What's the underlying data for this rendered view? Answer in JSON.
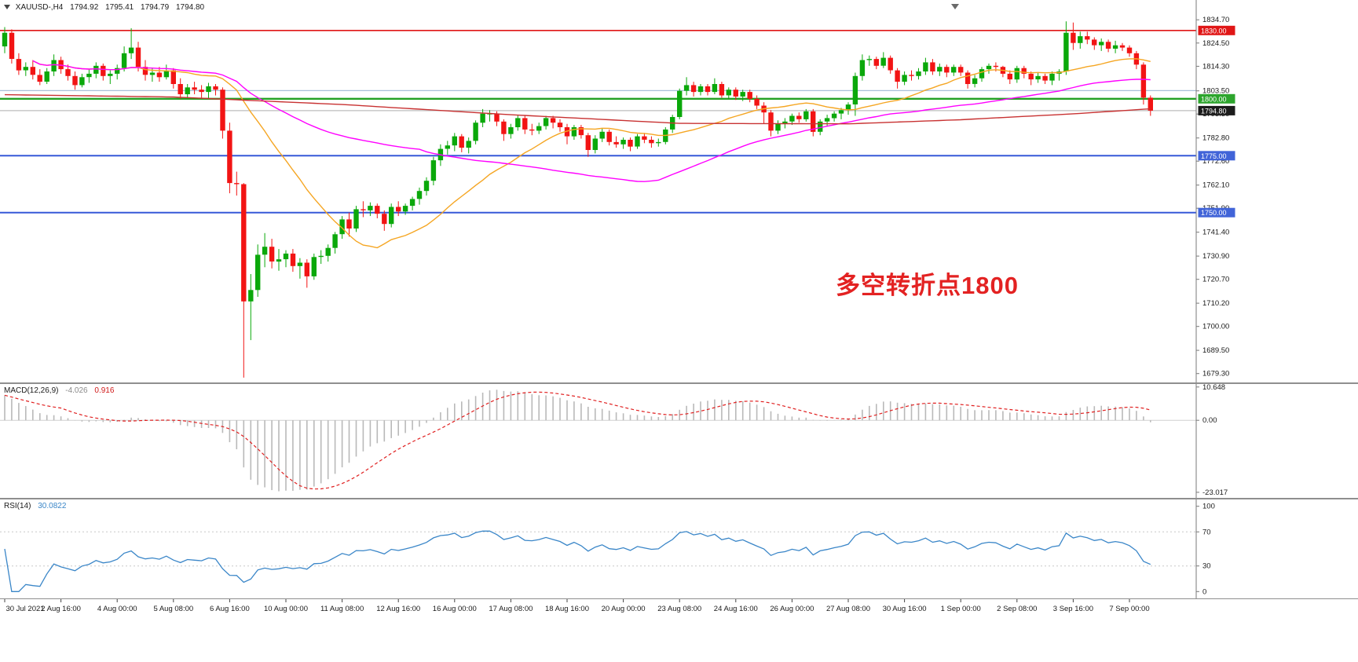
{
  "window": {
    "title_symbol": "XAUUSD-,H4",
    "ohlc": {
      "open": "1794.92",
      "high": "1795.41",
      "low": "1794.79",
      "close": "1794.80"
    }
  },
  "annotation": {
    "text": "多空转折点1800",
    "color": "#e32222"
  },
  "price_axis": {
    "range": {
      "max": 1843.4,
      "min": 1675.4
    },
    "ticks": [
      "1834.70",
      "1824.50",
      "1814.30",
      "1803.50",
      "1793.30",
      "1782.80",
      "1772.60",
      "1762.10",
      "1751.90",
      "1741.40",
      "1730.90",
      "1720.70",
      "1710.20",
      "1700.00",
      "1689.50",
      "1679.30"
    ],
    "badges": [
      {
        "text": "1830.00",
        "price": 1830.0,
        "bg": "#e01616"
      },
      {
        "text": "1800.00",
        "price": 1800.0,
        "bg": "#2da52d"
      },
      {
        "text": "1794.80",
        "price": 1794.8,
        "bg": "#1c1c1c"
      },
      {
        "text": "1775.00",
        "price": 1775.0,
        "bg": "#4164d8"
      },
      {
        "text": "1750.00",
        "price": 1750.0,
        "bg": "#4164d8"
      }
    ]
  },
  "chart_data": {
    "type": "candlestick",
    "symbol": "XAUUSD",
    "timeframe": "H4",
    "label_step": 8,
    "x_labels": [
      "30 Jul 2021",
      "2 Aug 16:00",
      "4 Aug 00:00",
      "5 Aug 08:00",
      "6 Aug 16:00",
      "10 Aug 00:00",
      "11 Aug 08:00",
      "12 Aug 16:00",
      "16 Aug 00:00",
      "17 Aug 08:00",
      "18 Aug 16:00",
      "20 Aug 00:00",
      "23 Aug 08:00",
      "24 Aug 16:00",
      "26 Aug 00:00",
      "27 Aug 08:00",
      "30 Aug 16:00",
      "1 Sep 00:00",
      "2 Sep 08:00",
      "3 Sep 16:00",
      "7 Sep 00:00"
    ],
    "candle_colors": {
      "up": "#0aa80a",
      "down": "#f21414"
    },
    "hlines": [
      {
        "price": 1830.0,
        "color": "#e01616",
        "width": 1.6
      },
      {
        "price": 1803.6,
        "color": "#a9c0d8",
        "width": 1.2
      },
      {
        "price": 1800.0,
        "color": "#22a022",
        "width": 2.4
      },
      {
        "price": 1794.8,
        "color": "#bdbdbd",
        "width": 1.2
      },
      {
        "price": 1775.0,
        "color": "#3658d8",
        "width": 2
      },
      {
        "price": 1750.0,
        "color": "#3658d8",
        "width": 2
      }
    ],
    "moving_averages": [
      {
        "name": "ma-fast",
        "period": 20,
        "color": "#f5a623"
      },
      {
        "name": "ma-mid",
        "period": 60,
        "color": "#ff00ff"
      },
      {
        "name": "ma-slow",
        "color": "#c83232",
        "points": [
          [
            0,
            1801.8
          ],
          [
            24,
            1800.8
          ],
          [
            48,
            1797.5
          ],
          [
            72,
            1793.0
          ],
          [
            96,
            1789.2
          ],
          [
            120,
            1789.0
          ],
          [
            136,
            1790.8
          ],
          [
            152,
            1793.4
          ],
          [
            163,
            1795.6
          ]
        ]
      }
    ],
    "ohlc": [
      [
        1823.0,
        1831.5,
        1820.0,
        1829.0
      ],
      [
        1829.0,
        1830.5,
        1815.5,
        1817.5
      ],
      [
        1817.5,
        1820.0,
        1810.5,
        1812.5
      ],
      [
        1812.5,
        1816.0,
        1810.0,
        1814.0
      ],
      [
        1814.0,
        1817.0,
        1808.5,
        1810.5
      ],
      [
        1810.5,
        1813.0,
        1806.0,
        1807.5
      ],
      [
        1807.5,
        1813.5,
        1806.5,
        1812.0
      ],
      [
        1812.0,
        1819.5,
        1810.0,
        1817.0
      ],
      [
        1817.0,
        1818.5,
        1811.0,
        1813.0
      ],
      [
        1813.0,
        1815.0,
        1808.0,
        1810.0
      ],
      [
        1810.0,
        1812.0,
        1804.0,
        1806.0
      ],
      [
        1806.0,
        1811.0,
        1805.0,
        1809.5
      ],
      [
        1809.5,
        1813.0,
        1807.0,
        1811.0
      ],
      [
        1811.0,
        1816.0,
        1809.0,
        1814.5
      ],
      [
        1814.5,
        1815.5,
        1808.0,
        1810.0
      ],
      [
        1810.0,
        1812.5,
        1806.5,
        1811.0
      ],
      [
        1811.0,
        1815.0,
        1808.5,
        1813.5
      ],
      [
        1813.5,
        1823.0,
        1812.0,
        1820.0
      ],
      [
        1820.0,
        1831.0,
        1817.5,
        1822.5
      ],
      [
        1822.5,
        1825.0,
        1812.0,
        1814.0
      ],
      [
        1814.0,
        1817.0,
        1808.0,
        1810.5
      ],
      [
        1810.5,
        1813.5,
        1807.5,
        1811.5
      ],
      [
        1811.5,
        1814.0,
        1807.5,
        1809.5
      ],
      [
        1809.5,
        1815.0,
        1808.5,
        1812.5
      ],
      [
        1812.5,
        1813.5,
        1804.5,
        1806.5
      ],
      [
        1806.5,
        1809.0,
        1800.0,
        1802.0
      ],
      [
        1802.0,
        1806.5,
        1800.5,
        1805.0
      ],
      [
        1805.0,
        1807.5,
        1802.0,
        1804.0
      ],
      [
        1804.0,
        1806.0,
        1800.5,
        1803.0
      ],
      [
        1803.0,
        1807.0,
        1800.0,
        1805.5
      ],
      [
        1805.5,
        1806.5,
        1801.5,
        1804.0
      ],
      [
        1804.0,
        1805.0,
        1782.5,
        1786.0
      ],
      [
        1786.0,
        1789.5,
        1758.5,
        1763.0
      ],
      [
        1763.0,
        1768.0,
        1757.5,
        1762.5
      ],
      [
        1762.5,
        1763.0,
        1677.5,
        1711.0
      ],
      [
        1711.0,
        1723.0,
        1694.0,
        1716.0
      ],
      [
        1716.0,
        1736.0,
        1713.0,
        1731.5
      ],
      [
        1731.5,
        1741.0,
        1726.0,
        1735.0
      ],
      [
        1735.0,
        1738.5,
        1725.5,
        1728.5
      ],
      [
        1728.5,
        1734.0,
        1724.5,
        1729.5
      ],
      [
        1729.5,
        1733.5,
        1726.0,
        1732.0
      ],
      [
        1732.0,
        1734.0,
        1724.0,
        1726.5
      ],
      [
        1726.5,
        1730.0,
        1721.0,
        1728.0
      ],
      [
        1728.0,
        1729.5,
        1717.0,
        1722.0
      ],
      [
        1722.0,
        1732.0,
        1720.5,
        1730.5
      ],
      [
        1730.5,
        1733.5,
        1727.5,
        1731.0
      ],
      [
        1731.0,
        1736.0,
        1728.5,
        1734.5
      ],
      [
        1734.5,
        1741.5,
        1732.0,
        1740.5
      ],
      [
        1740.5,
        1748.5,
        1738.5,
        1747.0
      ],
      [
        1747.0,
        1750.0,
        1739.5,
        1743.0
      ],
      [
        1743.0,
        1753.0,
        1741.5,
        1751.5
      ],
      [
        1751.5,
        1755.0,
        1748.0,
        1751.0
      ],
      [
        1751.0,
        1754.5,
        1748.5,
        1753.0
      ],
      [
        1753.0,
        1754.0,
        1747.5,
        1749.5
      ],
      [
        1749.5,
        1751.0,
        1742.0,
        1745.0
      ],
      [
        1745.0,
        1754.0,
        1743.5,
        1752.5
      ],
      [
        1752.5,
        1755.0,
        1748.5,
        1750.5
      ],
      [
        1750.5,
        1754.0,
        1749.0,
        1753.0
      ],
      [
        1753.0,
        1757.0,
        1751.0,
        1756.0
      ],
      [
        1756.0,
        1761.0,
        1753.5,
        1759.5
      ],
      [
        1759.5,
        1765.5,
        1757.5,
        1764.0
      ],
      [
        1764.0,
        1774.5,
        1762.0,
        1773.0
      ],
      [
        1773.0,
        1780.0,
        1770.5,
        1778.0
      ],
      [
        1778.0,
        1781.5,
        1775.5,
        1779.5
      ],
      [
        1779.5,
        1785.0,
        1777.0,
        1783.5
      ],
      [
        1783.5,
        1784.5,
        1776.5,
        1778.5
      ],
      [
        1778.5,
        1783.0,
        1776.0,
        1781.5
      ],
      [
        1781.5,
        1790.5,
        1780.0,
        1789.5
      ],
      [
        1789.5,
        1795.5,
        1787.5,
        1793.5
      ],
      [
        1793.5,
        1795.0,
        1790.0,
        1793.5
      ],
      [
        1793.5,
        1794.5,
        1788.0,
        1790.0
      ],
      [
        1790.0,
        1791.0,
        1781.5,
        1784.5
      ],
      [
        1784.5,
        1789.0,
        1782.5,
        1787.5
      ],
      [
        1787.5,
        1793.0,
        1786.0,
        1791.5
      ],
      [
        1791.5,
        1792.5,
        1784.5,
        1786.5
      ],
      [
        1786.5,
        1789.0,
        1784.0,
        1786.0
      ],
      [
        1786.0,
        1789.5,
        1784.5,
        1788.0
      ],
      [
        1788.0,
        1792.5,
        1786.5,
        1791.5
      ],
      [
        1791.5,
        1792.5,
        1787.0,
        1789.5
      ],
      [
        1789.5,
        1791.0,
        1785.5,
        1787.5
      ],
      [
        1787.5,
        1789.0,
        1780.0,
        1783.5
      ],
      [
        1783.5,
        1788.5,
        1782.0,
        1787.5
      ],
      [
        1787.5,
        1788.5,
        1782.5,
        1784.0
      ],
      [
        1784.0,
        1785.0,
        1774.5,
        1777.5
      ],
      [
        1777.5,
        1784.0,
        1776.0,
        1782.5
      ],
      [
        1782.5,
        1787.0,
        1781.0,
        1785.5
      ],
      [
        1785.5,
        1786.5,
        1779.5,
        1781.0
      ],
      [
        1781.0,
        1783.5,
        1778.5,
        1780.0
      ],
      [
        1780.0,
        1783.0,
        1778.0,
        1782.0
      ],
      [
        1782.0,
        1783.0,
        1777.0,
        1779.0
      ],
      [
        1779.0,
        1784.5,
        1778.0,
        1783.5
      ],
      [
        1783.5,
        1785.0,
        1780.5,
        1782.0
      ],
      [
        1782.0,
        1783.5,
        1778.5,
        1780.5
      ],
      [
        1780.5,
        1782.5,
        1779.0,
        1781.0
      ],
      [
        1781.0,
        1787.5,
        1780.0,
        1786.5
      ],
      [
        1786.5,
        1793.0,
        1785.0,
        1792.0
      ],
      [
        1792.0,
        1804.5,
        1791.0,
        1803.5
      ],
      [
        1803.5,
        1809.5,
        1801.5,
        1806.0
      ],
      [
        1806.0,
        1807.5,
        1801.0,
        1803.0
      ],
      [
        1803.0,
        1806.5,
        1801.5,
        1805.5
      ],
      [
        1805.5,
        1806.5,
        1801.5,
        1803.0
      ],
      [
        1803.0,
        1809.0,
        1802.0,
        1806.5
      ],
      [
        1806.5,
        1807.5,
        1800.5,
        1801.5
      ],
      [
        1801.5,
        1805.0,
        1800.0,
        1804.0
      ],
      [
        1804.0,
        1805.0,
        1799.5,
        1801.0
      ],
      [
        1801.0,
        1804.0,
        1799.0,
        1803.0
      ],
      [
        1803.0,
        1804.0,
        1798.5,
        1800.0
      ],
      [
        1800.0,
        1801.5,
        1795.5,
        1797.0
      ],
      [
        1797.0,
        1798.5,
        1789.0,
        1794.0
      ],
      [
        1794.0,
        1795.0,
        1783.5,
        1786.0
      ],
      [
        1786.0,
        1790.5,
        1784.5,
        1789.0
      ],
      [
        1789.0,
        1791.5,
        1787.0,
        1790.0
      ],
      [
        1790.0,
        1793.5,
        1788.5,
        1792.5
      ],
      [
        1792.5,
        1794.0,
        1789.5,
        1791.0
      ],
      [
        1791.0,
        1795.5,
        1790.0,
        1794.5
      ],
      [
        1794.5,
        1795.5,
        1783.5,
        1785.5
      ],
      [
        1785.5,
        1791.0,
        1784.0,
        1790.0
      ],
      [
        1790.0,
        1793.0,
        1788.0,
        1791.5
      ],
      [
        1791.5,
        1794.5,
        1790.0,
        1793.5
      ],
      [
        1793.5,
        1796.0,
        1791.0,
        1795.0
      ],
      [
        1795.0,
        1798.5,
        1793.0,
        1797.5
      ],
      [
        1797.5,
        1811.5,
        1792.5,
        1810.0
      ],
      [
        1810.0,
        1819.5,
        1808.0,
        1817.0
      ],
      [
        1817.0,
        1819.0,
        1814.5,
        1817.5
      ],
      [
        1817.5,
        1818.5,
        1813.0,
        1814.5
      ],
      [
        1814.5,
        1820.5,
        1813.5,
        1818.0
      ],
      [
        1818.0,
        1819.0,
        1811.0,
        1812.5
      ],
      [
        1812.5,
        1813.5,
        1804.5,
        1807.5
      ],
      [
        1807.5,
        1812.0,
        1806.0,
        1810.5
      ],
      [
        1810.5,
        1812.5,
        1808.0,
        1810.0
      ],
      [
        1810.0,
        1813.5,
        1808.5,
        1812.0
      ],
      [
        1812.0,
        1818.0,
        1810.5,
        1816.0
      ],
      [
        1816.0,
        1817.5,
        1810.5,
        1812.0
      ],
      [
        1812.0,
        1815.5,
        1810.0,
        1814.0
      ],
      [
        1814.0,
        1815.0,
        1809.5,
        1811.5
      ],
      [
        1811.5,
        1815.0,
        1810.0,
        1814.0
      ],
      [
        1814.0,
        1815.0,
        1810.0,
        1811.5
      ],
      [
        1811.5,
        1812.5,
        1804.5,
        1806.5
      ],
      [
        1806.5,
        1810.5,
        1805.0,
        1809.0
      ],
      [
        1809.0,
        1814.0,
        1807.5,
        1813.0
      ],
      [
        1813.0,
        1815.5,
        1811.0,
        1814.5
      ],
      [
        1814.5,
        1816.0,
        1812.0,
        1814.0
      ],
      [
        1814.0,
        1814.5,
        1809.5,
        1811.0
      ],
      [
        1811.0,
        1812.5,
        1806.5,
        1808.5
      ],
      [
        1808.5,
        1814.5,
        1807.0,
        1813.5
      ],
      [
        1813.5,
        1814.5,
        1809.0,
        1811.0
      ],
      [
        1811.0,
        1812.0,
        1806.0,
        1808.5
      ],
      [
        1808.5,
        1811.5,
        1807.0,
        1810.0
      ],
      [
        1810.0,
        1811.0,
        1806.5,
        1808.0
      ],
      [
        1808.0,
        1812.0,
        1806.0,
        1811.0
      ],
      [
        1811.0,
        1813.0,
        1808.0,
        1812.0
      ],
      [
        1812.0,
        1834.0,
        1810.5,
        1829.0
      ],
      [
        1829.0,
        1833.5,
        1821.5,
        1824.5
      ],
      [
        1824.5,
        1829.5,
        1822.0,
        1827.5
      ],
      [
        1827.5,
        1829.5,
        1824.0,
        1826.0
      ],
      [
        1826.0,
        1827.0,
        1821.5,
        1823.5
      ],
      [
        1823.5,
        1826.5,
        1821.0,
        1825.0
      ],
      [
        1825.0,
        1826.0,
        1820.5,
        1822.0
      ],
      [
        1822.0,
        1825.5,
        1820.0,
        1823.5
      ],
      [
        1823.5,
        1824.5,
        1821.0,
        1822.5
      ],
      [
        1822.5,
        1823.5,
        1818.5,
        1820.0
      ],
      [
        1820.0,
        1821.0,
        1813.0,
        1815.0
      ],
      [
        1815.0,
        1816.0,
        1797.5,
        1800.5
      ],
      [
        1800.5,
        1801.5,
        1792.5,
        1794.8
      ]
    ],
    "macd": {
      "label": "MACD(12,26,9)",
      "value_main": "-4.026",
      "value_signal": "0.916",
      "params": [
        12,
        26,
        9
      ],
      "axis_labels": {
        "max": "10.648",
        "zero": "0.00",
        "min": "-23.017"
      },
      "histogram_color": "#b9b9b9",
      "signal_color": "#e02020"
    },
    "rsi": {
      "label": "RSI(14)",
      "value": "30.0822",
      "period": 14,
      "axis_labels": [
        "100",
        "70",
        "30",
        "0"
      ],
      "levels": [
        70,
        30
      ],
      "line_color": "#3a86c8"
    }
  }
}
